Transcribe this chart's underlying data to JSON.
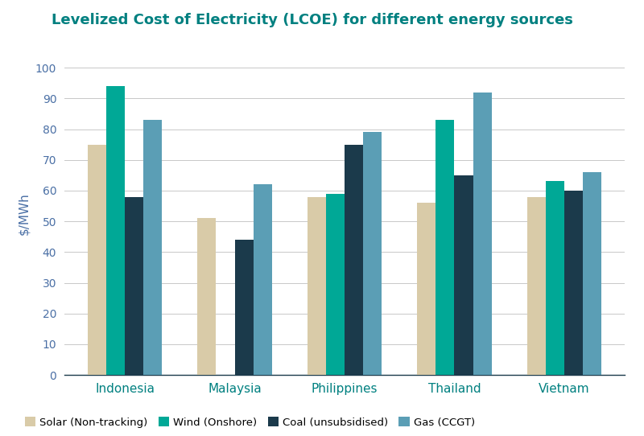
{
  "title": "Levelized Cost of Electricity (LCOE) for different energy sources",
  "ylabel": "$/MWh",
  "ylim": [
    0,
    105
  ],
  "yticks": [
    0,
    10,
    20,
    30,
    40,
    50,
    60,
    70,
    80,
    90,
    100
  ],
  "categories": [
    "Indonesia",
    "Malaysia",
    "Philippines",
    "Thailand",
    "Vietnam"
  ],
  "series": {
    "Solar (Non-tracking)": [
      75,
      51,
      58,
      56,
      58
    ],
    "Wind (Onshore)": [
      94,
      null,
      59,
      83,
      63
    ],
    "Coal (unsubsidised)": [
      58,
      44,
      75,
      65,
      60
    ],
    "Gas (CCGT)": [
      83,
      62,
      79,
      92,
      66
    ]
  },
  "colors": {
    "Solar (Non-tracking)": "#d9cba8",
    "Wind (Onshore)": "#00a896",
    "Coal (unsubsidised)": "#1b3a4b",
    "Gas (CCGT)": "#5b9eb5"
  },
  "bar_width": 0.17,
  "title_color": "#008080",
  "title_fontsize": 13,
  "ylabel_color": "#4a6fa5",
  "ytick_color": "#4a6fa5",
  "grid_color": "#c8c8c8",
  "background_color": "#ffffff",
  "legend_labels": [
    "Solar (Non-tracking)",
    "Wind (Onshore)",
    "Coal (unsubsidised)",
    "Gas (CCGT)"
  ],
  "xtick_color": "#008080",
  "xtick_fontsize": 11,
  "bottom_spine_color": "#1b3a4b"
}
